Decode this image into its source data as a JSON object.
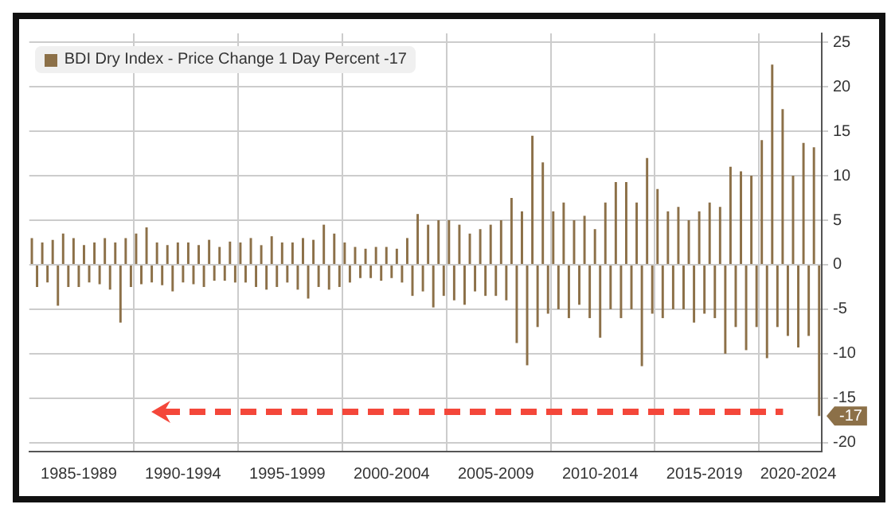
{
  "chart_data": {
    "type": "bar",
    "categories": [
      null,
      null,
      null,
      null,
      null,
      null,
      null,
      null,
      null,
      "1985-1989",
      null,
      null,
      null,
      null,
      null,
      null,
      null,
      null,
      null,
      null,
      null,
      null,
      null,
      null,
      null,
      null,
      null,
      null,
      null,
      "1990-1994",
      null,
      null,
      null,
      null,
      null,
      null,
      null,
      null,
      null,
      null,
      null,
      null,
      null,
      null,
      null,
      null,
      null,
      null,
      null,
      "1995-1999",
      null,
      null,
      null,
      null,
      null,
      null,
      null,
      null,
      null,
      null,
      null,
      null,
      null,
      null,
      null,
      null,
      null,
      null,
      null,
      "2000-2004",
      null,
      null,
      null,
      null,
      null,
      null,
      null,
      null,
      null,
      null,
      null,
      null,
      null,
      null,
      null,
      null,
      null,
      null,
      null,
      "2005-2009",
      null,
      null,
      null,
      null,
      null,
      null,
      null,
      null,
      null,
      null,
      null,
      null,
      null,
      null,
      null,
      null,
      null,
      null,
      null,
      "2010-2014",
      null,
      null,
      null,
      null,
      null,
      null,
      null,
      null,
      null,
      null,
      null,
      null,
      null,
      null,
      null,
      null,
      null,
      null,
      null,
      "2015-2019",
      null,
      null,
      null,
      null,
      null,
      null,
      null,
      null,
      null,
      null,
      null,
      null,
      null,
      null,
      null,
      null,
      null,
      "2020-2024",
      null,
      null,
      null,
      null
    ],
    "series": [
      {
        "name": "BDI Dry Index - Price Change 1 Day Percent -17",
        "color": "#8c7048",
        "values": [
          3,
          -2.5,
          2.5,
          -2,
          2.8,
          -4.6,
          3.5,
          -2.5,
          3,
          -2.5,
          2.2,
          -2,
          2.5,
          -2.2,
          3,
          -2.8,
          2.5,
          -6.5,
          3,
          -2.5,
          3.5,
          -2.2,
          4.2,
          -2,
          2.5,
          -2.3,
          2.2,
          -3,
          2.5,
          -2,
          2.5,
          -2.2,
          2.2,
          -2.5,
          2.8,
          -1.8,
          2,
          -1.8,
          2.6,
          -2,
          2.5,
          -2,
          3,
          -2.5,
          2.2,
          -2.8,
          3.2,
          -2.5,
          2.5,
          -2,
          2.5,
          -2.8,
          3,
          -3.8,
          2.8,
          -2.5,
          4.5,
          -2.8,
          3.5,
          -2.5,
          2.5,
          -2,
          2,
          -1.5,
          1.8,
          -1.5,
          2,
          -1.8,
          2,
          -1.5,
          1.8,
          -2,
          3,
          -3.5,
          5.7,
          -3,
          4.5,
          -4.8,
          5,
          -3.5,
          5,
          -4,
          4.5,
          -4.5,
          3.5,
          -3,
          4,
          -3.5,
          4.5,
          -3.5,
          5,
          -4,
          7.5,
          -8.8,
          6,
          -11.3,
          14.5,
          -7,
          11.5,
          -5.5,
          6,
          -5,
          7,
          -6,
          5,
          -4.5,
          5.5,
          -6,
          4,
          -8.2,
          7,
          -5,
          9.3,
          -6,
          9.3,
          -5,
          7,
          -11.4,
          12,
          -5.5,
          8.5,
          -6,
          6,
          -5,
          6.5,
          -5,
          5,
          -6.5,
          6,
          -5.5,
          7,
          -6,
          6.5,
          -10,
          11,
          -7,
          10.5,
          -9.6,
          10,
          -7,
          14,
          -10.5,
          22.5,
          -7,
          17.5,
          -8,
          10,
          -9.3,
          13.7,
          -8,
          13.2,
          -17
        ]
      }
    ],
    "ylim": [
      -21,
      26
    ],
    "yticks": [
      -20,
      -15,
      -10,
      -5,
      0,
      5,
      10,
      15,
      20,
      25
    ],
    "grid": true,
    "legend": "top left",
    "annotations": [
      "-17"
    ]
  }
}
